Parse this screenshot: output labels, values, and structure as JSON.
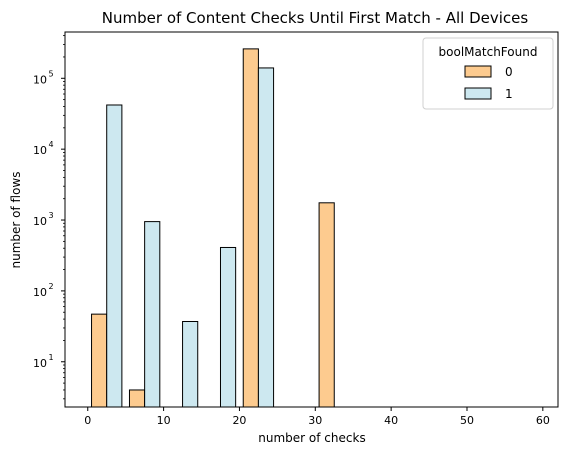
{
  "chart_data": {
    "type": "bar",
    "title": "Number of Content Checks Until First Match - All Devices",
    "xlabel": "number of checks",
    "ylabel": "number of flows",
    "xlim": [
      -3,
      62
    ],
    "ylim": [
      2.3,
      450000
    ],
    "yscale": "log",
    "xticks": [
      0,
      10,
      20,
      30,
      40,
      50,
      60
    ],
    "yticks": [
      {
        "base": "10",
        "exp": "1",
        "value": 10
      },
      {
        "base": "10",
        "exp": "2",
        "value": 100
      },
      {
        "base": "10",
        "exp": "3",
        "value": 1000
      },
      {
        "base": "10",
        "exp": "4",
        "value": 10000
      },
      {
        "base": "10",
        "exp": "5",
        "value": 100000
      }
    ],
    "grid": false,
    "legend": {
      "title": "boolMatchFound",
      "position": "top-right"
    },
    "series": [
      {
        "name": "0",
        "color": "#fdcb8f",
        "bars": [
          {
            "x0": 0.5,
            "x1": 2.5,
            "value": 47
          },
          {
            "x0": 5.5,
            "x1": 7.5,
            "value": 4
          },
          {
            "x0": 20.5,
            "x1": 22.5,
            "value": 260000
          },
          {
            "x0": 30.5,
            "x1": 32.5,
            "value": 1750
          }
        ]
      },
      {
        "name": "1",
        "color": "#cde8f0",
        "bars": [
          {
            "x0": 2.5,
            "x1": 4.5,
            "value": 42000
          },
          {
            "x0": 7.5,
            "x1": 9.5,
            "value": 950
          },
          {
            "x0": 12.5,
            "x1": 14.5,
            "value": 37
          },
          {
            "x0": 17.5,
            "x1": 19.5,
            "value": 410
          },
          {
            "x0": 22.5,
            "x1": 24.5,
            "value": 140000
          }
        ]
      }
    ]
  }
}
